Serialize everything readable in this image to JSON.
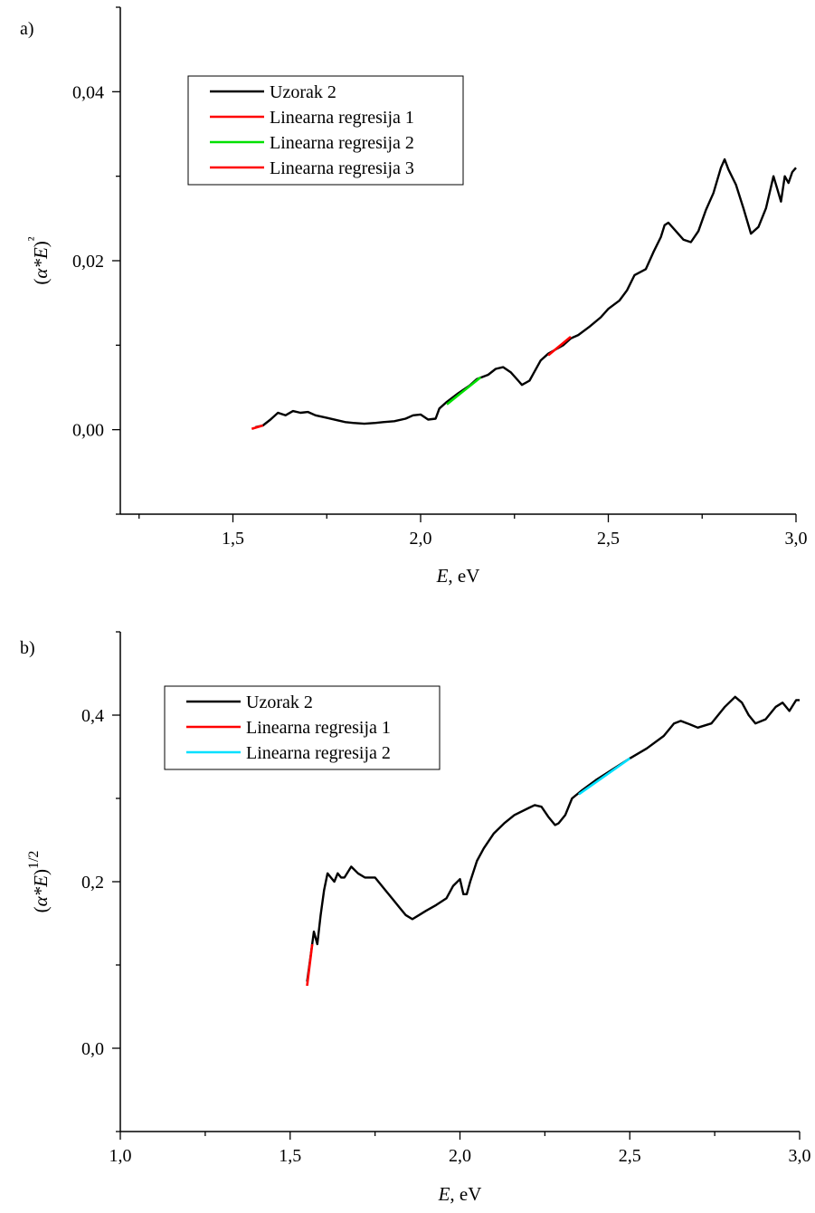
{
  "chart_data": [
    {
      "type": "line",
      "panel_label": "a)",
      "xlabel": "E, eV",
      "ylabel": "(α*E)²",
      "xlim": [
        1.2,
        3.0
      ],
      "ylim": [
        -0.01,
        0.05
      ],
      "x_ticks": [
        1.5,
        2.0,
        2.5,
        3.0
      ],
      "x_tick_labels": [
        "1,5",
        "2,0",
        "2,5",
        "3,0"
      ],
      "y_ticks": [
        0.0,
        0.02,
        0.04
      ],
      "y_tick_labels": [
        "0,00",
        "0,02",
        "0,04"
      ],
      "legend_position": "top-left",
      "series": [
        {
          "name": "Uzorak 2",
          "color": "#000000",
          "x": [
            1.56,
            1.58,
            1.6,
            1.62,
            1.64,
            1.66,
            1.68,
            1.7,
            1.72,
            1.75,
            1.78,
            1.8,
            1.82,
            1.85,
            1.88,
            1.9,
            1.93,
            1.96,
            1.98,
            2.0,
            2.02,
            2.04,
            2.05,
            2.07,
            2.1,
            2.13,
            2.15,
            2.18,
            2.2,
            2.22,
            2.24,
            2.26,
            2.27,
            2.29,
            2.3,
            2.32,
            2.34,
            2.36,
            2.38,
            2.4,
            2.42,
            2.45,
            2.48,
            2.5,
            2.53,
            2.55,
            2.57,
            2.6,
            2.62,
            2.64,
            2.65,
            2.66,
            2.68,
            2.7,
            2.72,
            2.74,
            2.76,
            2.78,
            2.8,
            2.81,
            2.82,
            2.84,
            2.86,
            2.88,
            2.9,
            2.92,
            2.94,
            2.95,
            2.96,
            2.97,
            2.98,
            2.99,
            3.0
          ],
          "y": [
            0.0003,
            0.0005,
            0.0012,
            0.002,
            0.0017,
            0.0022,
            0.002,
            0.0021,
            0.0017,
            0.0014,
            0.0011,
            0.0009,
            0.0008,
            0.0007,
            0.0008,
            0.0009,
            0.001,
            0.0013,
            0.0017,
            0.0018,
            0.0012,
            0.0013,
            0.0025,
            0.0033,
            0.0043,
            0.0052,
            0.006,
            0.0065,
            0.0072,
            0.0074,
            0.0068,
            0.0058,
            0.0053,
            0.0058,
            0.0066,
            0.0082,
            0.009,
            0.0095,
            0.01,
            0.0108,
            0.0112,
            0.0122,
            0.0133,
            0.0143,
            0.0153,
            0.0165,
            0.0183,
            0.019,
            0.021,
            0.0228,
            0.0242,
            0.0245,
            0.0235,
            0.0225,
            0.0222,
            0.0235,
            0.026,
            0.028,
            0.031,
            0.032,
            0.0308,
            0.029,
            0.0262,
            0.0232,
            0.024,
            0.0262,
            0.03,
            0.0285,
            0.027,
            0.03,
            0.0292,
            0.0305,
            0.031
          ]
        },
        {
          "name": "Linearna regresija 1",
          "color": "#ff0000",
          "x": [
            1.55,
            1.58
          ],
          "y": [
            0.0001,
            0.0005
          ]
        },
        {
          "name": "Linearna regresija 2",
          "color": "#00e000",
          "x": [
            2.07,
            2.16
          ],
          "y": [
            0.003,
            0.0062
          ]
        },
        {
          "name": "Linearna regresija 3",
          "color": "#ff0000",
          "x": [
            2.34,
            2.4
          ],
          "y": [
            0.0088,
            0.011
          ]
        }
      ]
    },
    {
      "type": "line",
      "panel_label": "b)",
      "xlabel": "E, eV",
      "ylabel": "(α*E)^1/2",
      "xlim": [
        1.0,
        3.0
      ],
      "ylim": [
        -0.1,
        0.5
      ],
      "x_ticks": [
        1.0,
        1.5,
        2.0,
        2.5,
        3.0
      ],
      "x_tick_labels": [
        "1,0",
        "1,5",
        "2,0",
        "2,5",
        "3,0"
      ],
      "y_ticks": [
        0.0,
        0.2,
        0.4
      ],
      "y_tick_labels": [
        "0,0",
        "0,2",
        "0,4"
      ],
      "legend_position": "top-left",
      "series": [
        {
          "name": "Uzorak 2",
          "color": "#000000",
          "x": [
            1.55,
            1.56,
            1.57,
            1.58,
            1.59,
            1.6,
            1.61,
            1.62,
            1.63,
            1.64,
            1.65,
            1.66,
            1.68,
            1.7,
            1.72,
            1.75,
            1.78,
            1.8,
            1.82,
            1.84,
            1.86,
            1.88,
            1.9,
            1.93,
            1.96,
            1.98,
            2.0,
            2.01,
            2.02,
            2.03,
            2.05,
            2.07,
            2.1,
            2.13,
            2.16,
            2.2,
            2.22,
            2.24,
            2.26,
            2.28,
            2.29,
            2.31,
            2.33,
            2.36,
            2.4,
            2.45,
            2.5,
            2.55,
            2.6,
            2.63,
            2.65,
            2.67,
            2.7,
            2.74,
            2.78,
            2.81,
            2.83,
            2.85,
            2.87,
            2.9,
            2.93,
            2.95,
            2.97,
            2.99,
            3.0
          ],
          "y": [
            0.08,
            0.11,
            0.14,
            0.125,
            0.16,
            0.19,
            0.21,
            0.205,
            0.2,
            0.21,
            0.205,
            0.205,
            0.218,
            0.21,
            0.205,
            0.205,
            0.19,
            0.18,
            0.17,
            0.16,
            0.155,
            0.16,
            0.165,
            0.172,
            0.18,
            0.195,
            0.203,
            0.185,
            0.185,
            0.2,
            0.225,
            0.24,
            0.258,
            0.27,
            0.28,
            0.288,
            0.292,
            0.29,
            0.278,
            0.268,
            0.27,
            0.28,
            0.3,
            0.31,
            0.322,
            0.335,
            0.348,
            0.36,
            0.375,
            0.39,
            0.393,
            0.39,
            0.385,
            0.39,
            0.41,
            0.422,
            0.415,
            0.4,
            0.39,
            0.395,
            0.41,
            0.415,
            0.405,
            0.418,
            0.418
          ]
        },
        {
          "name": "Linearna regresija 1",
          "color": "#ff0000",
          "x": [
            1.55,
            1.565
          ],
          "y": [
            0.075,
            0.125
          ]
        },
        {
          "name": "Linearna regresija 2",
          "color": "#00e0ff",
          "x": [
            2.35,
            2.5
          ],
          "y": [
            0.305,
            0.348
          ]
        }
      ]
    }
  ]
}
